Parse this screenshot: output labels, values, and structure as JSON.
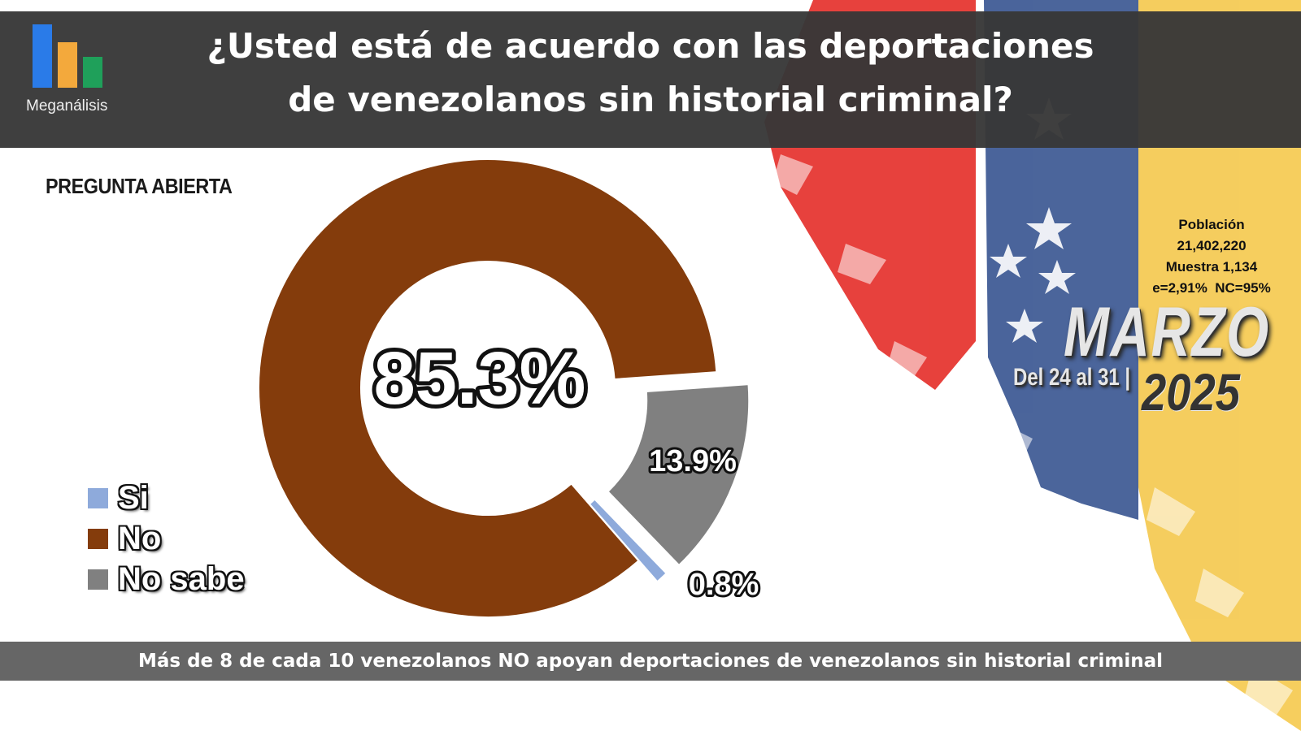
{
  "brand": {
    "name": "Meganálisis"
  },
  "header": {
    "title_line1": "¿Usted está de acuerdo con las deportaciones",
    "title_line2": "de venezolanos sin historial criminal?"
  },
  "subtitle": "PREGUNTA ABIERTA",
  "survey": {
    "population_label": "Población",
    "population_value": "21,402,220",
    "sample": "Muestra 1,134",
    "error": "e=2,91%  NC=95%",
    "month": "MARZO",
    "dates": "Del 24 al 31 |",
    "year": "2025"
  },
  "footer": "Más de 8 de cada 10 venezolanos NO apoyan deportaciones de venezolanos sin historial criminal",
  "colors": {
    "si": "#8eaadb",
    "no": "#843c0c",
    "no_sabe": "#808080",
    "header_bg": "#373737"
  },
  "chart_data": {
    "type": "pie",
    "subtype": "donut",
    "categories": [
      "Si",
      "No",
      "No sabe"
    ],
    "values": [
      0.8,
      85.3,
      13.9
    ],
    "labels": [
      "0.8%",
      "85.3%",
      "13.9%"
    ],
    "colors": [
      "#8eaadb",
      "#843c0c",
      "#808080"
    ],
    "legend_position": "left"
  }
}
